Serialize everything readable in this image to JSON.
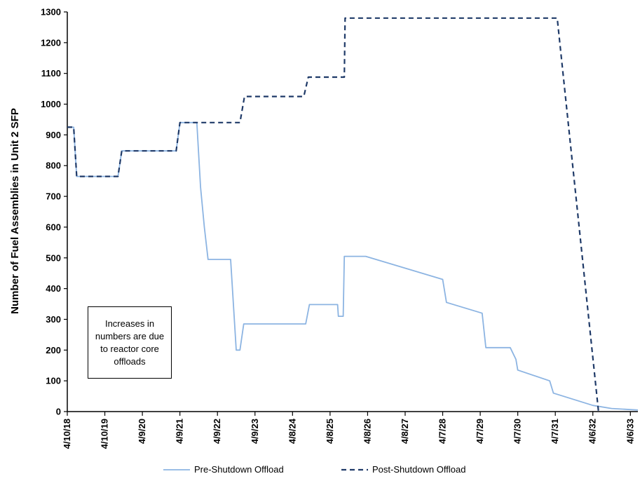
{
  "chart_data": {
    "type": "line",
    "title": "",
    "xlabel": "",
    "ylabel": "Number of Fuel Assemblies in Unit 2 SFP",
    "ylim": [
      0,
      1300
    ],
    "yticks": [
      0,
      100,
      200,
      300,
      400,
      500,
      600,
      700,
      800,
      900,
      1000,
      1100,
      1200,
      1300
    ],
    "xlim": [
      0,
      15.2
    ],
    "xticks": [
      {
        "x": 0,
        "label": "4/10/18"
      },
      {
        "x": 1,
        "label": "4/10/19"
      },
      {
        "x": 2,
        "label": "4/9/20"
      },
      {
        "x": 3,
        "label": "4/9/21"
      },
      {
        "x": 4,
        "label": "4/9/22"
      },
      {
        "x": 5,
        "label": "4/9/23"
      },
      {
        "x": 6,
        "label": "4/8/24"
      },
      {
        "x": 7,
        "label": "4/8/25"
      },
      {
        "x": 8,
        "label": "4/8/26"
      },
      {
        "x": 9,
        "label": "4/8/27"
      },
      {
        "x": 10,
        "label": "4/7/28"
      },
      {
        "x": 11,
        "label": "4/7/29"
      },
      {
        "x": 12,
        "label": "4/7/30"
      },
      {
        "x": 13,
        "label": "4/7/31"
      },
      {
        "x": 14,
        "label": "4/6/32"
      },
      {
        "x": 15,
        "label": "4/6/33"
      }
    ],
    "grid": false,
    "legend_position": "bottom",
    "annotation": "Increases in numbers are due to reactor core offloads",
    "series": [
      {
        "name": "Pre-Shutdown Offload",
        "color": "#8cb4e2",
        "dash": "solid",
        "points": [
          [
            0,
            925
          ],
          [
            0.17,
            925
          ],
          [
            0.25,
            765
          ],
          [
            1.35,
            765
          ],
          [
            1.45,
            848
          ],
          [
            2.9,
            848
          ],
          [
            3.0,
            940
          ],
          [
            3.45,
            940
          ],
          [
            3.55,
            730
          ],
          [
            3.65,
            600
          ],
          [
            3.75,
            495
          ],
          [
            4.35,
            495
          ],
          [
            4.5,
            200
          ],
          [
            4.6,
            200
          ],
          [
            4.7,
            285
          ],
          [
            6.35,
            285
          ],
          [
            6.45,
            348
          ],
          [
            7.2,
            348
          ],
          [
            7.22,
            310
          ],
          [
            7.35,
            310
          ],
          [
            7.38,
            505
          ],
          [
            7.95,
            505
          ],
          [
            10.0,
            430
          ],
          [
            10.1,
            355
          ],
          [
            11.05,
            320
          ],
          [
            11.15,
            208
          ],
          [
            11.8,
            208
          ],
          [
            11.95,
            170
          ],
          [
            12.0,
            135
          ],
          [
            12.85,
            100
          ],
          [
            12.95,
            60
          ],
          [
            14.0,
            20
          ],
          [
            14.5,
            10
          ],
          [
            15.2,
            5
          ]
        ]
      },
      {
        "name": "Post-Shutdown Offload",
        "color": "#1f3a68",
        "dash": "dashed",
        "points": [
          [
            0,
            925
          ],
          [
            0.17,
            925
          ],
          [
            0.25,
            765
          ],
          [
            1.35,
            765
          ],
          [
            1.45,
            848
          ],
          [
            2.9,
            848
          ],
          [
            3.0,
            940
          ],
          [
            4.6,
            940
          ],
          [
            4.72,
            1025
          ],
          [
            6.3,
            1025
          ],
          [
            6.42,
            1088
          ],
          [
            7.38,
            1088
          ],
          [
            7.4,
            1280
          ],
          [
            13.05,
            1280
          ],
          [
            14.15,
            0
          ]
        ]
      }
    ]
  }
}
